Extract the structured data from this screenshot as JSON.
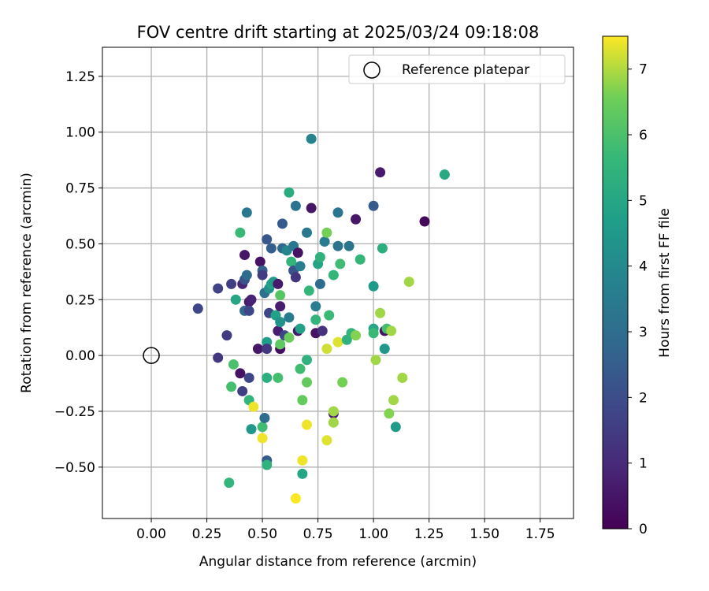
{
  "chart_data": {
    "type": "scatter",
    "title": "FOV centre drift starting at 2025/03/24 09:18:08",
    "xlabel": "Angular distance from reference (arcmin)",
    "ylabel": "Rotation from reference (arcmin)",
    "xlim": [
      -0.22,
      1.9
    ],
    "ylim": [
      -0.73,
      1.38
    ],
    "xticks": [
      0.0,
      0.25,
      0.5,
      0.75,
      1.0,
      1.25,
      1.5,
      1.75
    ],
    "xtick_labels": [
      "0.00",
      "0.25",
      "0.50",
      "0.75",
      "1.00",
      "1.25",
      "1.50",
      "1.75"
    ],
    "yticks": [
      -0.5,
      -0.25,
      0.0,
      0.25,
      0.5,
      0.75,
      1.0,
      1.25
    ],
    "ytick_labels": [
      "−0.50",
      "−0.25",
      "0.00",
      "0.25",
      "0.50",
      "0.75",
      "1.00",
      "1.25"
    ],
    "grid": true,
    "legend": {
      "position": "top-right",
      "entries": [
        "Reference platepar"
      ]
    },
    "reference_point": {
      "x": 0.0,
      "y": 0.0,
      "label": "Reference platepar"
    },
    "colorbar": {
      "label": "Hours from first FF file",
      "min": 0,
      "max": 7.5,
      "ticks": [
        0,
        1,
        2,
        3,
        4,
        5,
        6,
        7
      ],
      "colormap": "viridis"
    },
    "series": [
      {
        "color_by": "Hours from first FF file",
        "points": [
          {
            "x": 0.21,
            "y": 0.21,
            "c": 1.8
          },
          {
            "x": 0.3,
            "y": 0.3,
            "c": 1.7
          },
          {
            "x": 0.36,
            "y": 0.32,
            "c": 1.6
          },
          {
            "x": 0.34,
            "y": 0.09,
            "c": 1.5
          },
          {
            "x": 0.3,
            "y": -0.01,
            "c": 1.4
          },
          {
            "x": 0.41,
            "y": 0.32,
            "c": 0.9
          },
          {
            "x": 0.42,
            "y": 0.34,
            "c": 2.2
          },
          {
            "x": 0.43,
            "y": 0.36,
            "c": 3.0
          },
          {
            "x": 0.42,
            "y": 0.2,
            "c": 2.8
          },
          {
            "x": 0.44,
            "y": 0.24,
            "c": 0.6
          },
          {
            "x": 0.45,
            "y": 0.25,
            "c": 0.8
          },
          {
            "x": 0.44,
            "y": 0.2,
            "c": 1.8
          },
          {
            "x": 0.42,
            "y": 0.45,
            "c": 0.5
          },
          {
            "x": 0.43,
            "y": 0.64,
            "c": 3.4
          },
          {
            "x": 0.4,
            "y": 0.55,
            "c": 5.7
          },
          {
            "x": 0.38,
            "y": 0.25,
            "c": 5.0
          },
          {
            "x": 0.37,
            "y": -0.04,
            "c": 6.0
          },
          {
            "x": 0.36,
            "y": -0.14,
            "c": 5.9
          },
          {
            "x": 0.4,
            "y": -0.08,
            "c": 0.4
          },
          {
            "x": 0.44,
            "y": -0.1,
            "c": 1.8
          },
          {
            "x": 0.41,
            "y": -0.16,
            "c": 1.6
          },
          {
            "x": 0.44,
            "y": -0.2,
            "c": 5.5
          },
          {
            "x": 0.46,
            "y": -0.23,
            "c": 7.4
          },
          {
            "x": 0.45,
            "y": -0.33,
            "c": 4.5
          },
          {
            "x": 0.5,
            "y": -0.32,
            "c": 5.8
          },
          {
            "x": 0.5,
            "y": -0.37,
            "c": 7.4
          },
          {
            "x": 0.51,
            "y": -0.28,
            "c": 3.0
          },
          {
            "x": 0.52,
            "y": -0.47,
            "c": 2.4
          },
          {
            "x": 0.52,
            "y": -0.49,
            "c": 5.4
          },
          {
            "x": 0.35,
            "y": -0.57,
            "c": 5.5
          },
          {
            "x": 0.49,
            "y": 0.42,
            "c": 0.4
          },
          {
            "x": 0.5,
            "y": 0.38,
            "c": 2.6
          },
          {
            "x": 0.5,
            "y": 0.36,
            "c": 1.5
          },
          {
            "x": 0.51,
            "y": 0.28,
            "c": 3.1
          },
          {
            "x": 0.52,
            "y": 0.52,
            "c": 2.3
          },
          {
            "x": 0.53,
            "y": 0.3,
            "c": 4.2
          },
          {
            "x": 0.54,
            "y": 0.32,
            "c": 4.8
          },
          {
            "x": 0.55,
            "y": 0.33,
            "c": 4.6
          },
          {
            "x": 0.54,
            "y": 0.48,
            "c": 2.5
          },
          {
            "x": 0.53,
            "y": 0.19,
            "c": 1.8
          },
          {
            "x": 0.56,
            "y": 0.18,
            "c": 4.8
          },
          {
            "x": 0.57,
            "y": 0.32,
            "c": 0.6
          },
          {
            "x": 0.58,
            "y": 0.27,
            "c": 6.2
          },
          {
            "x": 0.58,
            "y": 0.22,
            "c": 0.7
          },
          {
            "x": 0.57,
            "y": 0.11,
            "c": 0.7
          },
          {
            "x": 0.58,
            "y": 0.15,
            "c": 4.3
          },
          {
            "x": 0.59,
            "y": 0.48,
            "c": 2.8
          },
          {
            "x": 0.59,
            "y": 0.59,
            "c": 2.4
          },
          {
            "x": 0.62,
            "y": 0.73,
            "c": 5.2
          },
          {
            "x": 0.61,
            "y": 0.47,
            "c": 3.9
          },
          {
            "x": 0.62,
            "y": 0.17,
            "c": 3.5
          },
          {
            "x": 0.6,
            "y": 0.09,
            "c": 1.8
          },
          {
            "x": 0.62,
            "y": 0.08,
            "c": 6.5
          },
          {
            "x": 0.63,
            "y": 0.42,
            "c": 5.5
          },
          {
            "x": 0.64,
            "y": 0.49,
            "c": 3.4
          },
          {
            "x": 0.64,
            "y": 0.38,
            "c": 2.2
          },
          {
            "x": 0.65,
            "y": 0.67,
            "c": 3.2
          },
          {
            "x": 0.65,
            "y": 0.35,
            "c": 1.3
          },
          {
            "x": 0.66,
            "y": 0.46,
            "c": 0.4
          },
          {
            "x": 0.67,
            "y": 0.4,
            "c": 3.6
          },
          {
            "x": 0.66,
            "y": 0.11,
            "c": 0.5
          },
          {
            "x": 0.67,
            "y": 0.12,
            "c": 4.8
          },
          {
            "x": 0.58,
            "y": 0.03,
            "c": 0.3
          },
          {
            "x": 0.58,
            "y": 0.05,
            "c": 6.3
          },
          {
            "x": 0.52,
            "y": 0.06,
            "c": 4.7
          },
          {
            "x": 0.48,
            "y": 0.03,
            "c": 0.5
          },
          {
            "x": 0.52,
            "y": 0.03,
            "c": 1.4
          },
          {
            "x": 0.52,
            "y": -0.1,
            "c": 5.3
          },
          {
            "x": 0.57,
            "y": -0.1,
            "c": 5.9
          },
          {
            "x": 0.67,
            "y": -0.06,
            "c": 5.8
          },
          {
            "x": 0.7,
            "y": -0.02,
            "c": 5.4
          },
          {
            "x": 0.7,
            "y": -0.12,
            "c": 6.4
          },
          {
            "x": 0.68,
            "y": -0.2,
            "c": 6.4
          },
          {
            "x": 0.72,
            "y": 0.97,
            "c": 3.8
          },
          {
            "x": 0.7,
            "y": 0.55,
            "c": 3.4
          },
          {
            "x": 0.72,
            "y": 0.66,
            "c": 0.5
          },
          {
            "x": 0.71,
            "y": 0.29,
            "c": 5.6
          },
          {
            "x": 0.74,
            "y": 0.22,
            "c": 3.6
          },
          {
            "x": 0.74,
            "y": 0.1,
            "c": 0.4
          },
          {
            "x": 0.74,
            "y": 0.16,
            "c": 5.5
          },
          {
            "x": 0.75,
            "y": 0.41,
            "c": 4.9
          },
          {
            "x": 0.76,
            "y": 0.44,
            "c": 5.4
          },
          {
            "x": 0.76,
            "y": 0.32,
            "c": 3.0
          },
          {
            "x": 0.77,
            "y": 0.11,
            "c": 1.2
          },
          {
            "x": 0.78,
            "y": 0.51,
            "c": 3.5
          },
          {
            "x": 0.79,
            "y": 0.55,
            "c": 6.6
          },
          {
            "x": 0.79,
            "y": 0.03,
            "c": 7.2
          },
          {
            "x": 0.8,
            "y": 0.18,
            "c": 5.7
          },
          {
            "x": 0.82,
            "y": 0.36,
            "c": 5.6
          },
          {
            "x": 0.84,
            "y": 0.49,
            "c": 3.2
          },
          {
            "x": 0.84,
            "y": 0.64,
            "c": 3.3
          },
          {
            "x": 0.84,
            "y": 0.06,
            "c": 7.3
          },
          {
            "x": 0.85,
            "y": 0.41,
            "c": 5.8
          },
          {
            "x": 0.82,
            "y": -0.26,
            "c": 0.6
          },
          {
            "x": 0.82,
            "y": -0.25,
            "c": 6.9
          },
          {
            "x": 0.82,
            "y": -0.3,
            "c": 6.9
          },
          {
            "x": 0.86,
            "y": -0.12,
            "c": 6.6
          },
          {
            "x": 0.79,
            "y": -0.38,
            "c": 7.3
          },
          {
            "x": 0.7,
            "y": -0.31,
            "c": 7.4
          },
          {
            "x": 0.68,
            "y": -0.47,
            "c": 7.4
          },
          {
            "x": 0.68,
            "y": -0.53,
            "c": 5.0
          },
          {
            "x": 0.65,
            "y": -0.64,
            "c": 7.5
          },
          {
            "x": 0.88,
            "y": 0.07,
            "c": 5.4
          },
          {
            "x": 0.89,
            "y": 0.49,
            "c": 3.3
          },
          {
            "x": 0.9,
            "y": 0.1,
            "c": 5.5
          },
          {
            "x": 0.92,
            "y": 0.61,
            "c": 0.5
          },
          {
            "x": 0.92,
            "y": 0.09,
            "c": 6.7
          },
          {
            "x": 0.94,
            "y": 0.43,
            "c": 5.6
          },
          {
            "x": 1.0,
            "y": 0.67,
            "c": 2.4
          },
          {
            "x": 1.0,
            "y": 0.31,
            "c": 4.6
          },
          {
            "x": 1.0,
            "y": 0.12,
            "c": 5.0
          },
          {
            "x": 1.0,
            "y": 0.1,
            "c": 5.7
          },
          {
            "x": 1.01,
            "y": -0.02,
            "c": 6.9
          },
          {
            "x": 1.03,
            "y": 0.82,
            "c": 0.6
          },
          {
            "x": 1.03,
            "y": 0.19,
            "c": 6.9
          },
          {
            "x": 1.04,
            "y": 0.48,
            "c": 5.3
          },
          {
            "x": 1.05,
            "y": 0.11,
            "c": 0.4
          },
          {
            "x": 1.05,
            "y": 0.03,
            "c": 4.5
          },
          {
            "x": 1.06,
            "y": 0.12,
            "c": 5.9
          },
          {
            "x": 1.07,
            "y": -0.26,
            "c": 6.7
          },
          {
            "x": 1.08,
            "y": 0.11,
            "c": 6.9
          },
          {
            "x": 1.09,
            "y": -0.2,
            "c": 6.9
          },
          {
            "x": 1.1,
            "y": -0.32,
            "c": 4.6
          },
          {
            "x": 1.13,
            "y": -0.1,
            "c": 6.9
          },
          {
            "x": 1.16,
            "y": 0.33,
            "c": 6.9
          },
          {
            "x": 1.23,
            "y": 0.6,
            "c": 0.2
          },
          {
            "x": 1.32,
            "y": 0.81,
            "c": 5.1
          }
        ]
      }
    ]
  }
}
